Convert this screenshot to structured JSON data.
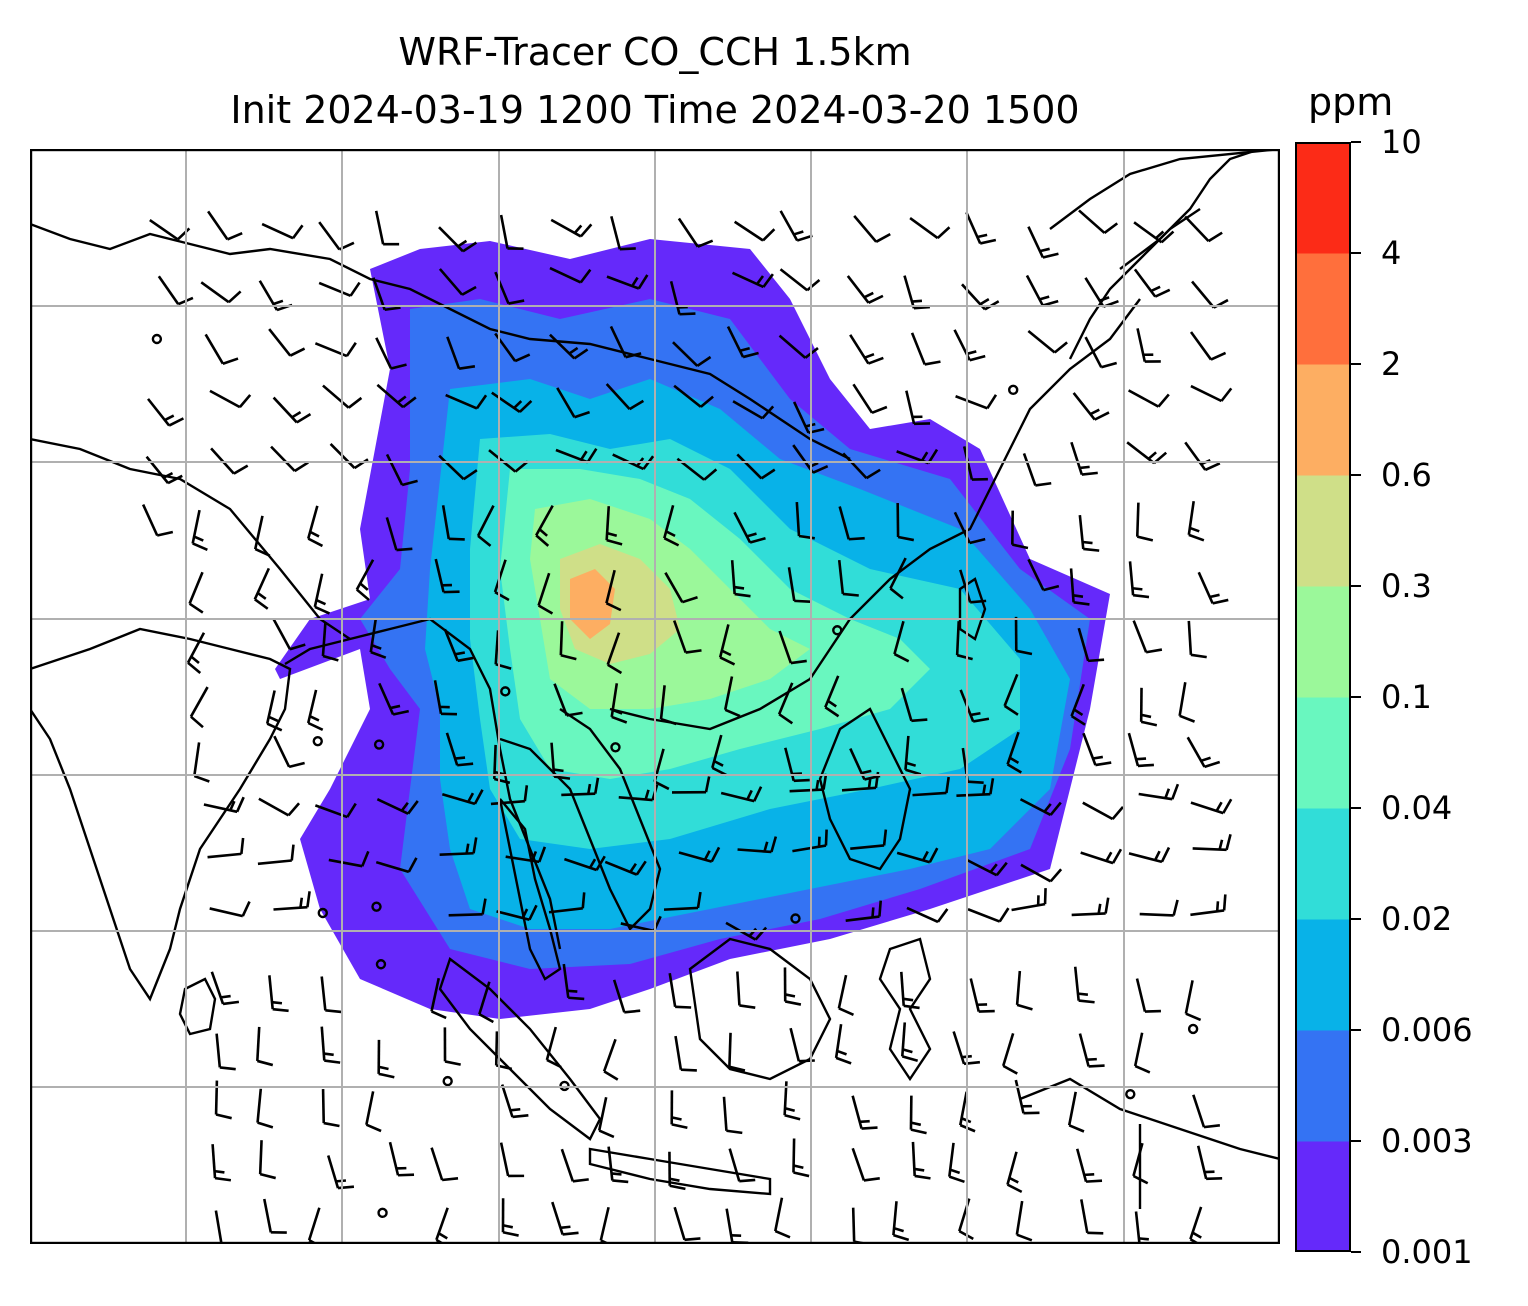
{
  "chart_data": {
    "type": "heatmap",
    "title": "WRF-Tracer CO_CCH 1.5km",
    "subtitle": "Init 2024-03-19 1200 Time 2024-03-20 1500",
    "colorbar": {
      "unit": "ppm",
      "levels": [
        "0.001",
        "0.003",
        "0.006",
        "0.02",
        "0.04",
        "0.1",
        "0.3",
        "0.6",
        "2",
        "4",
        "10"
      ],
      "colors": [
        "#6529fa",
        "#3473f3",
        "#08b2e8",
        "#31ddd8",
        "#69f7bf",
        "#9bf89a",
        "#cfdf88",
        "#fdae62",
        "#ff6f3c",
        "#fc2b17"
      ]
    },
    "grid": true,
    "overlay": "wind barbs + coastlines"
  }
}
